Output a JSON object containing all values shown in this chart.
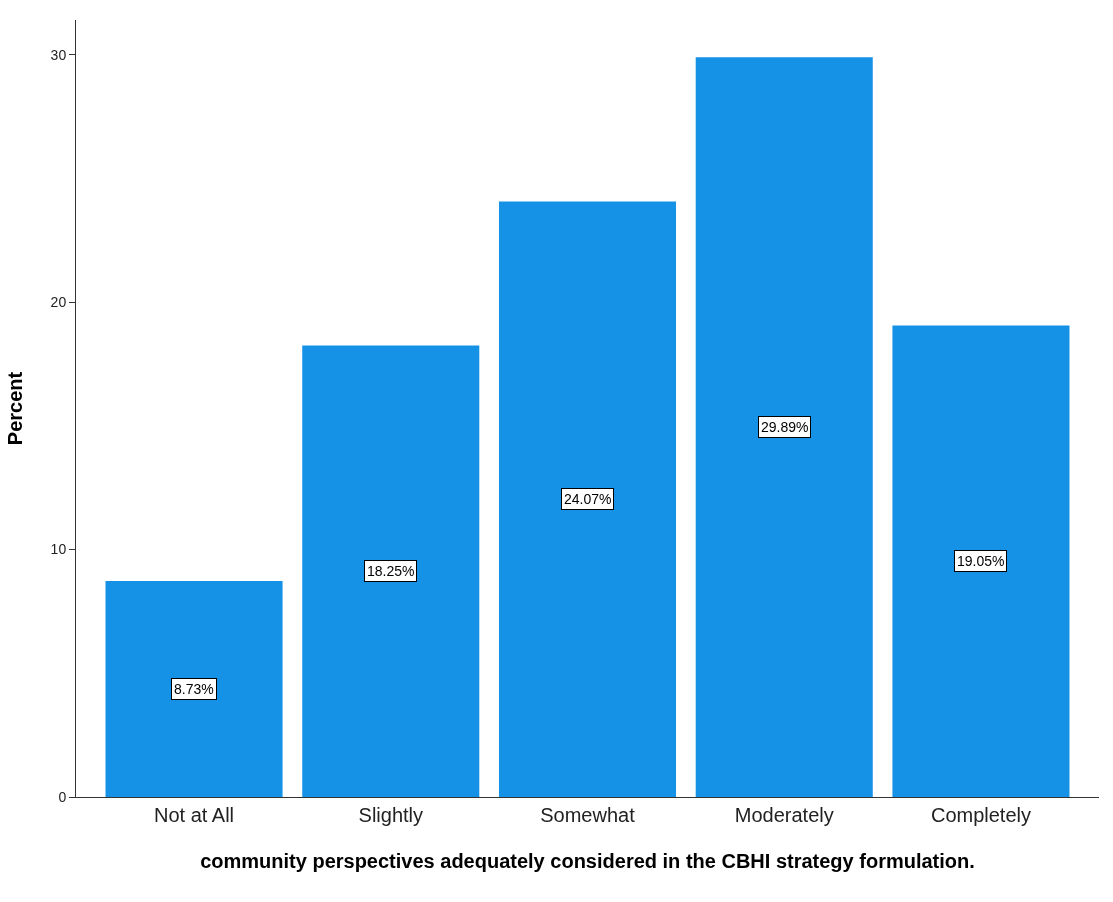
{
  "chart_data": {
    "type": "bar",
    "xlabel": "community perspectives adequately considered in the CBHI strategy formulation.",
    "ylabel": "Percent",
    "categories": [
      "Not at All",
      "Slightly",
      "Somewhat",
      "Moderately",
      "Completely"
    ],
    "values": [
      8.73,
      18.25,
      24.07,
      29.89,
      19.05
    ],
    "value_labels": [
      "8.73%",
      "18.25%",
      "24.07%",
      "29.89%",
      "19.05%"
    ],
    "color": "#1591e6",
    "ylim": [
      0,
      31.4
    ],
    "yticks": [
      0,
      10,
      20,
      30
    ],
    "grid": false
  }
}
